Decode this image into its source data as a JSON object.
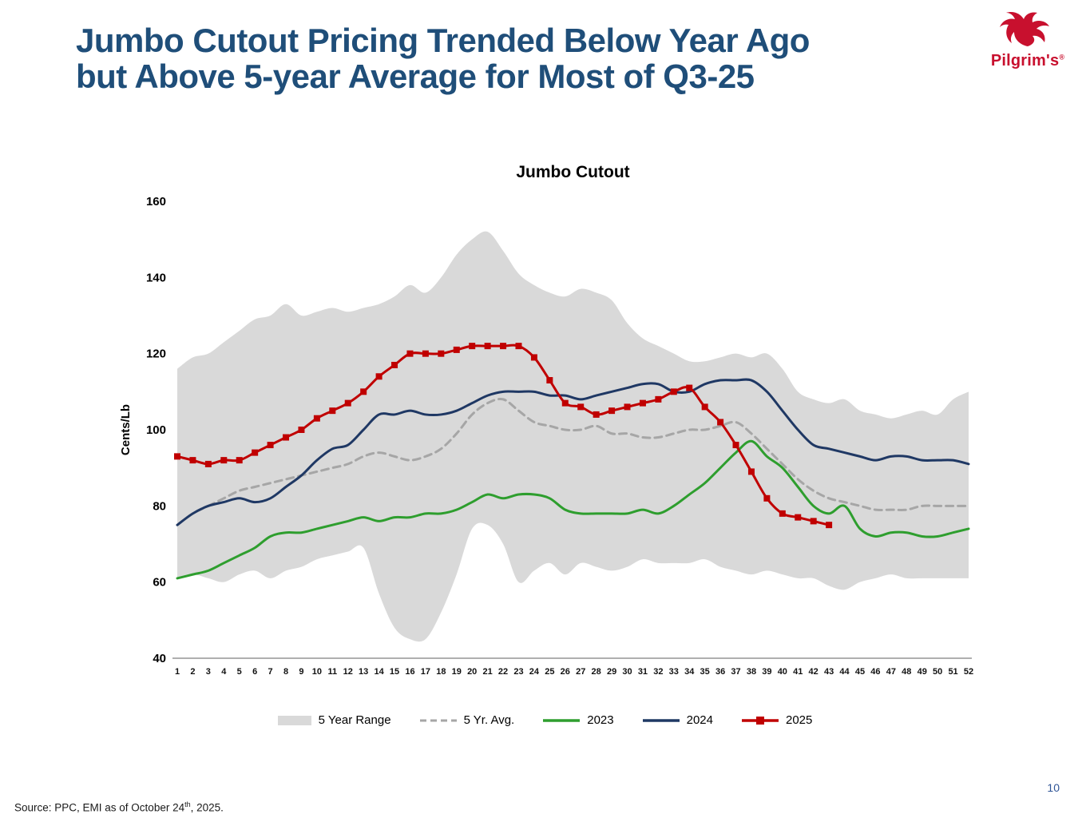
{
  "slide": {
    "title_line1": "Jumbo Cutout Pricing Trended Below Year Ago",
    "title_line2": "but Above 5-year Average for Most of Q3-25",
    "page_number": "10",
    "source": {
      "prefix": "Source: PPC, EMI as of October 24",
      "sup": "th",
      "suffix": ", 2025."
    },
    "logo": {
      "text": "Pilgrim's",
      "registered": "®",
      "color": "#c8102e"
    }
  },
  "chart_data": {
    "type": "line",
    "title": "Jumbo Cutout",
    "xlabel": "",
    "ylabel": "Cents/Lb",
    "ylim": [
      40,
      160
    ],
    "yticks": [
      40,
      60,
      80,
      100,
      120,
      140,
      160
    ],
    "grid": false,
    "legend_position": "bottom",
    "x": [
      1,
      2,
      3,
      4,
      5,
      6,
      7,
      8,
      9,
      10,
      11,
      12,
      13,
      14,
      15,
      16,
      17,
      18,
      19,
      20,
      21,
      22,
      23,
      24,
      25,
      26,
      27,
      28,
      29,
      30,
      31,
      32,
      33,
      34,
      35,
      36,
      37,
      38,
      39,
      40,
      41,
      42,
      43,
      44,
      45,
      46,
      47,
      48,
      49,
      50,
      51,
      52
    ],
    "series": [
      {
        "name": "5 Year Range",
        "style": "band",
        "color": "#d9d9d9",
        "upper": [
          116,
          119,
          120,
          123,
          126,
          129,
          130,
          133,
          130,
          131,
          132,
          131,
          132,
          133,
          135,
          138,
          136,
          140,
          146,
          150,
          152,
          147,
          141,
          138,
          136,
          135,
          137,
          136,
          134,
          128,
          124,
          122,
          120,
          118,
          118,
          119,
          120,
          119,
          120,
          116,
          110,
          108,
          107,
          108,
          105,
          104,
          103,
          104,
          105,
          104,
          108,
          110
        ],
        "lower": [
          61,
          62,
          61,
          60,
          62,
          63,
          61,
          63,
          64,
          66,
          67,
          68,
          69,
          57,
          48,
          45,
          45,
          52,
          62,
          74,
          75,
          70,
          60,
          63,
          65,
          62,
          65,
          64,
          63,
          64,
          66,
          65,
          65,
          65,
          66,
          64,
          63,
          62,
          63,
          62,
          61,
          61,
          59,
          58,
          60,
          61,
          62,
          61,
          61,
          61,
          61,
          61
        ]
      },
      {
        "name": "5 Yr. Avg.",
        "style": "dashed",
        "color": "#a6a6a6",
        "values": [
          75,
          78,
          80,
          82,
          84,
          85,
          86,
          87,
          88,
          89,
          90,
          91,
          93,
          94,
          93,
          92,
          93,
          95,
          99,
          104,
          107,
          108,
          105,
          102,
          101,
          100,
          100,
          101,
          99,
          99,
          98,
          98,
          99,
          100,
          100,
          101,
          102,
          99,
          95,
          91,
          87,
          84,
          82,
          81,
          80,
          79,
          79,
          79,
          80,
          80,
          80,
          80
        ]
      },
      {
        "name": "2023",
        "style": "solid",
        "color": "#2e9e2e",
        "values": [
          61,
          62,
          63,
          65,
          67,
          69,
          72,
          73,
          73,
          74,
          75,
          76,
          77,
          76,
          77,
          77,
          78,
          78,
          79,
          81,
          83,
          82,
          83,
          83,
          82,
          79,
          78,
          78,
          78,
          78,
          79,
          78,
          80,
          83,
          86,
          90,
          94,
          97,
          93,
          90,
          85,
          80,
          78,
          80,
          74,
          72,
          73,
          73,
          72,
          72,
          73,
          74
        ]
      },
      {
        "name": "2024",
        "style": "solid",
        "color": "#1f3864",
        "values": [
          75,
          78,
          80,
          81,
          82,
          81,
          82,
          85,
          88,
          92,
          95,
          96,
          100,
          104,
          104,
          105,
          104,
          104,
          105,
          107,
          109,
          110,
          110,
          110,
          109,
          109,
          108,
          109,
          110,
          111,
          112,
          112,
          110,
          110,
          112,
          113,
          113,
          113,
          110,
          105,
          100,
          96,
          95,
          94,
          93,
          92,
          93,
          93,
          92,
          92,
          92,
          91
        ]
      },
      {
        "name": "2025",
        "style": "solid-marker",
        "color": "#c00000",
        "values": [
          93,
          92,
          91,
          92,
          92,
          94,
          96,
          98,
          100,
          103,
          105,
          107,
          110,
          114,
          117,
          120,
          120,
          120,
          121,
          122,
          122,
          122,
          122,
          119,
          113,
          107,
          106,
          104,
          105,
          106,
          107,
          108,
          110,
          111,
          106,
          102,
          96,
          89,
          82,
          78,
          77,
          76,
          75,
          null,
          null,
          null,
          null,
          null,
          null,
          null,
          null,
          null
        ]
      }
    ]
  }
}
